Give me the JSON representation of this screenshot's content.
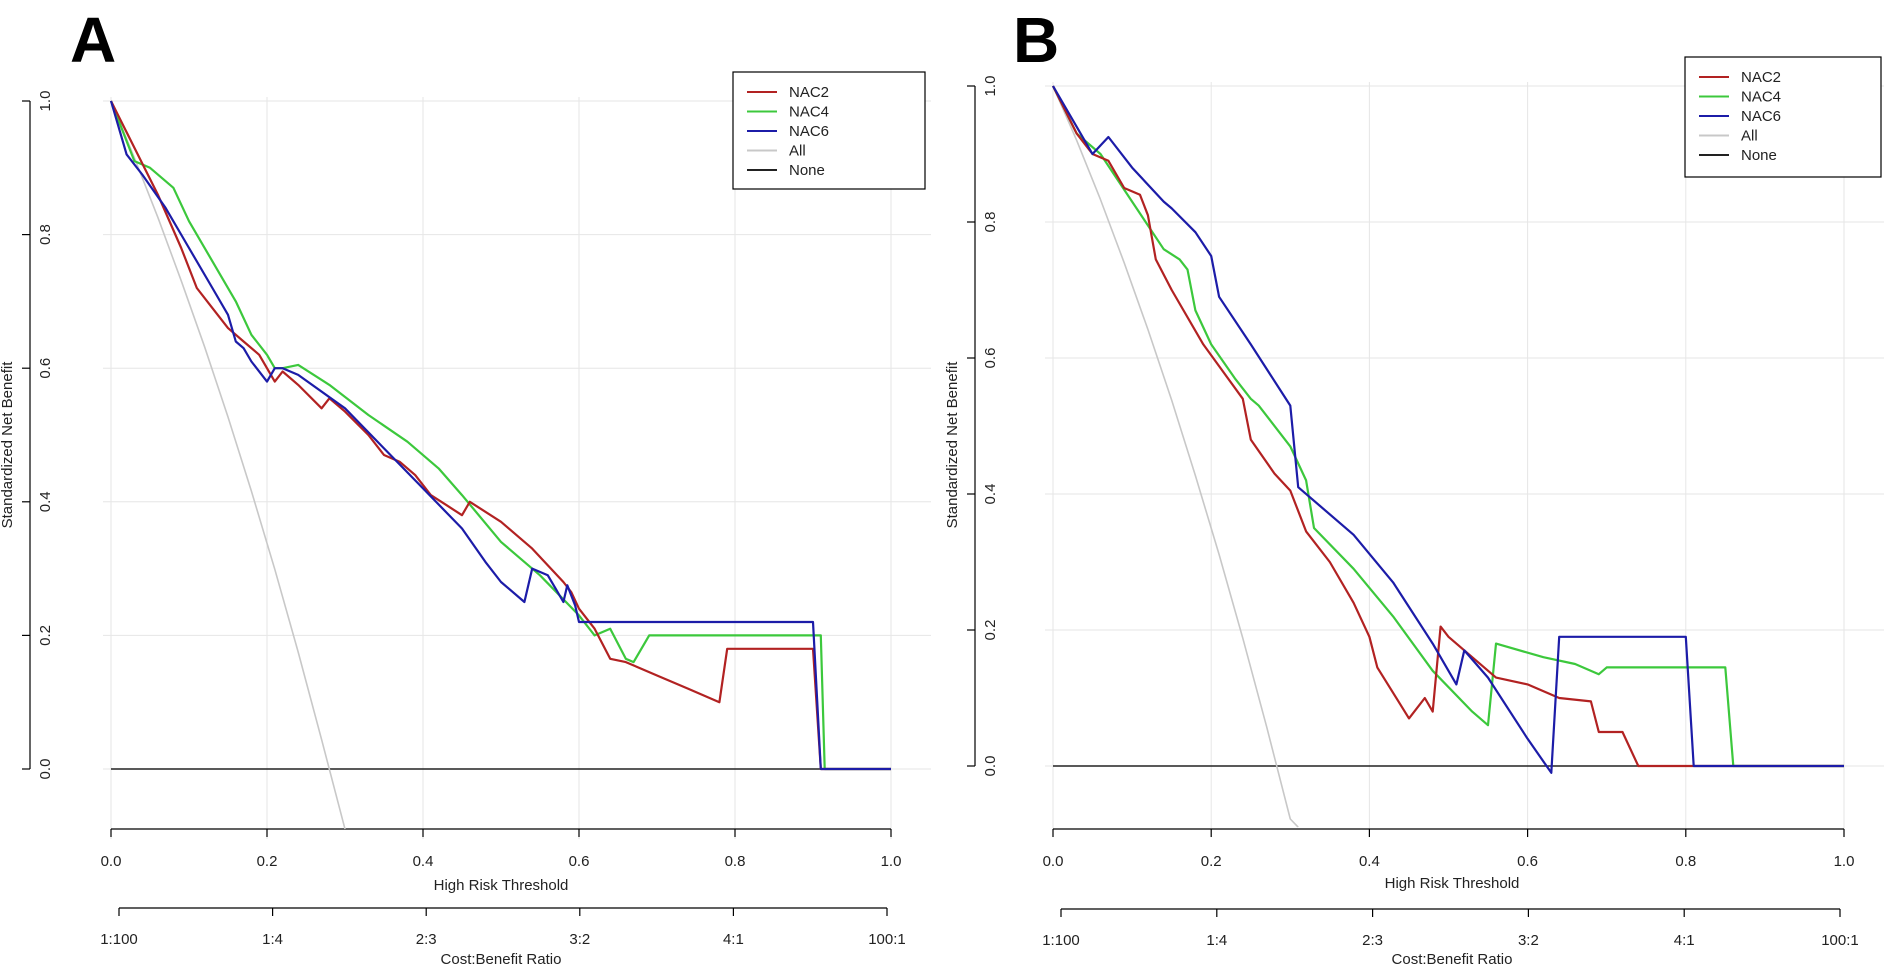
{
  "panels": [
    {
      "label": "A",
      "chart_data": {
        "type": "line",
        "xlabel": "High Risk Threshold",
        "ylabel": "Standardized Net Benefit",
        "secondary_xlabel": "Cost:Benefit Ratio",
        "xlim": [
          0,
          1
        ],
        "ylim": [
          -0.09,
          1.0
        ],
        "x_ticks": [
          "0.0",
          "0.2",
          "0.4",
          "0.6",
          "0.8",
          "1.0"
        ],
        "y_ticks": [
          "0.0",
          "0.2",
          "0.4",
          "0.6",
          "0.8",
          "1.0"
        ],
        "ratio_ticks": [
          "1:100",
          "1:4",
          "2:3",
          "3:2",
          "4:1",
          "100:1"
        ],
        "grid": true,
        "legend_position": "top-right",
        "series": [
          {
            "name": "NAC2",
            "color": "#b22222",
            "x": [
              0,
              0.03,
              0.06,
              0.09,
              0.11,
              0.13,
              0.15,
              0.17,
              0.19,
              0.21,
              0.22,
              0.24,
              0.27,
              0.28,
              0.3,
              0.33,
              0.35,
              0.37,
              0.39,
              0.41,
              0.43,
              0.45,
              0.46,
              0.5,
              0.54,
              0.58,
              0.59,
              0.6,
              0.62,
              0.64,
              0.66,
              0.7,
              0.74,
              0.78,
              0.79,
              0.8,
              0.84,
              0.9,
              0.91,
              1.0
            ],
            "values": [
              1.0,
              0.93,
              0.86,
              0.78,
              0.72,
              0.69,
              0.66,
              0.64,
              0.62,
              0.58,
              0.595,
              0.575,
              0.54,
              0.555,
              0.535,
              0.5,
              0.47,
              0.46,
              0.44,
              0.41,
              0.395,
              0.38,
              0.4,
              0.37,
              0.33,
              0.28,
              0.265,
              0.24,
              0.21,
              0.165,
              0.16,
              0.14,
              0.12,
              0.1,
              0.18,
              0.18,
              0.18,
              0.18,
              0.0,
              0.0
            ]
          },
          {
            "name": "NAC4",
            "color": "#3cc83c",
            "x": [
              0,
              0.02,
              0.03,
              0.05,
              0.08,
              0.1,
              0.13,
              0.16,
              0.18,
              0.2,
              0.21,
              0.22,
              0.24,
              0.28,
              0.33,
              0.38,
              0.42,
              0.45,
              0.5,
              0.55,
              0.6,
              0.62,
              0.64,
              0.66,
              0.67,
              0.69,
              0.72,
              0.78,
              0.86,
              0.91,
              0.915,
              1.0
            ],
            "values": [
              1.0,
              0.94,
              0.91,
              0.9,
              0.87,
              0.82,
              0.76,
              0.7,
              0.65,
              0.62,
              0.6,
              0.6,
              0.605,
              0.575,
              0.53,
              0.49,
              0.45,
              0.41,
              0.34,
              0.29,
              0.23,
              0.2,
              0.21,
              0.165,
              0.16,
              0.2,
              0.2,
              0.2,
              0.2,
              0.2,
              0.0,
              0.0
            ]
          },
          {
            "name": "NAC6",
            "color": "#1c1ca8",
            "x": [
              0,
              0.02,
              0.04,
              0.07,
              0.1,
              0.13,
              0.15,
              0.16,
              0.17,
              0.18,
              0.2,
              0.21,
              0.22,
              0.24,
              0.3,
              0.35,
              0.4,
              0.45,
              0.48,
              0.5,
              0.53,
              0.54,
              0.56,
              0.57,
              0.58,
              0.585,
              0.59,
              0.595,
              0.6,
              0.65,
              0.75,
              0.88,
              0.9,
              0.91,
              1.0
            ],
            "values": [
              1.0,
              0.92,
              0.89,
              0.84,
              0.78,
              0.72,
              0.68,
              0.64,
              0.63,
              0.61,
              0.58,
              0.6,
              0.6,
              0.59,
              0.54,
              0.48,
              0.42,
              0.36,
              0.31,
              0.28,
              0.25,
              0.3,
              0.29,
              0.27,
              0.25,
              0.275,
              0.26,
              0.245,
              0.22,
              0.22,
              0.22,
              0.22,
              0.22,
              0.0,
              0.0
            ]
          },
          {
            "name": "All",
            "color": "#c8c8c8",
            "x": [
              0,
              0.03,
              0.06,
              0.09,
              0.12,
              0.15,
              0.18,
              0.21,
              0.24,
              0.27,
              0.3
            ],
            "values": [
              1.0,
              0.915,
              0.826,
              0.731,
              0.632,
              0.527,
              0.416,
              0.299,
              0.175,
              0.044,
              -0.09
            ]
          },
          {
            "name": "None",
            "color": "#222222",
            "x": [
              0,
              1.0
            ],
            "values": [
              0,
              0
            ]
          }
        ]
      }
    },
    {
      "label": "B",
      "chart_data": {
        "type": "line",
        "xlabel": "High Risk Threshold",
        "ylabel": "Standardized Net Benefit",
        "secondary_xlabel": "Cost:Benefit Ratio",
        "xlim": [
          0,
          1
        ],
        "ylim": [
          -0.09,
          1.0
        ],
        "x_ticks": [
          "0.0",
          "0.2",
          "0.4",
          "0.6",
          "0.8",
          "1.0"
        ],
        "y_ticks": [
          "0.0",
          "0.2",
          "0.4",
          "0.6",
          "0.8",
          "1.0"
        ],
        "ratio_ticks": [
          "1:100",
          "1:4",
          "2:3",
          "3:2",
          "4:1",
          "100:1"
        ],
        "grid": true,
        "legend_position": "top-right",
        "series": [
          {
            "name": "NAC2",
            "color": "#b22222",
            "x": [
              0,
              0.03,
              0.05,
              0.07,
              0.09,
              0.11,
              0.12,
              0.13,
              0.15,
              0.19,
              0.24,
              0.25,
              0.28,
              0.3,
              0.32,
              0.35,
              0.38,
              0.4,
              0.41,
              0.45,
              0.47,
              0.48,
              0.49,
              0.5,
              0.53,
              0.56,
              0.6,
              0.64,
              0.68,
              0.69,
              0.72,
              0.74,
              0.8,
              1.0
            ],
            "values": [
              1.0,
              0.93,
              0.9,
              0.89,
              0.85,
              0.84,
              0.81,
              0.745,
              0.7,
              0.62,
              0.54,
              0.48,
              0.43,
              0.405,
              0.345,
              0.3,
              0.24,
              0.19,
              0.145,
              0.07,
              0.1,
              0.08,
              0.205,
              0.19,
              0.16,
              0.13,
              0.12,
              0.1,
              0.095,
              0.05,
              0.05,
              0.0,
              0.0,
              0.0
            ]
          },
          {
            "name": "NAC4",
            "color": "#3cc83c",
            "x": [
              0,
              0.03,
              0.06,
              0.1,
              0.14,
              0.16,
              0.17,
              0.18,
              0.2,
              0.23,
              0.25,
              0.26,
              0.3,
              0.32,
              0.33,
              0.38,
              0.43,
              0.48,
              0.53,
              0.55,
              0.56,
              0.62,
              0.66,
              0.69,
              0.7,
              0.74,
              0.78,
              0.82,
              0.85,
              0.86,
              1.0
            ],
            "values": [
              1.0,
              0.93,
              0.9,
              0.83,
              0.76,
              0.745,
              0.73,
              0.67,
              0.62,
              0.57,
              0.54,
              0.53,
              0.47,
              0.42,
              0.35,
              0.29,
              0.22,
              0.14,
              0.08,
              0.06,
              0.18,
              0.16,
              0.15,
              0.135,
              0.145,
              0.145,
              0.145,
              0.145,
              0.145,
              0.0,
              0.0
            ]
          },
          {
            "name": "NAC6",
            "color": "#1c1ca8",
            "x": [
              0,
              0.03,
              0.05,
              0.07,
              0.1,
              0.14,
              0.15,
              0.18,
              0.2,
              0.21,
              0.25,
              0.3,
              0.31,
              0.38,
              0.43,
              0.48,
              0.51,
              0.52,
              0.55,
              0.6,
              0.63,
              0.64,
              0.7,
              0.8,
              0.81,
              1.0
            ],
            "values": [
              1.0,
              0.94,
              0.9,
              0.925,
              0.88,
              0.83,
              0.82,
              0.785,
              0.75,
              0.69,
              0.62,
              0.53,
              0.41,
              0.34,
              0.27,
              0.18,
              0.12,
              0.17,
              0.13,
              0.04,
              -0.01,
              0.19,
              0.19,
              0.19,
              0.0,
              0.0
            ]
          },
          {
            "name": "All",
            "color": "#c8c8c8",
            "x": [
              0,
              0.03,
              0.06,
              0.09,
              0.12,
              0.15,
              0.18,
              0.21,
              0.24,
              0.27,
              0.3,
              0.31
            ],
            "values": [
              1.0,
              0.92,
              0.833,
              0.74,
              0.642,
              0.538,
              0.427,
              0.311,
              0.188,
              0.058,
              -0.078,
              -0.09
            ]
          },
          {
            "name": "None",
            "color": "#222222",
            "x": [
              0,
              1.0
            ],
            "values": [
              0,
              0
            ]
          }
        ]
      }
    }
  ]
}
